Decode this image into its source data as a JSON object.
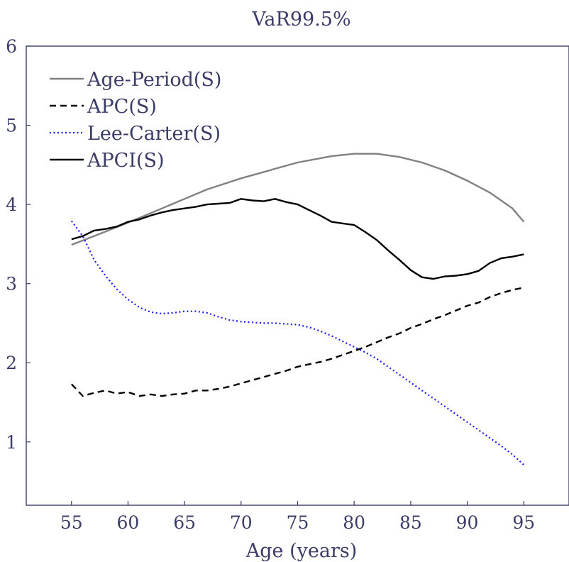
{
  "chart_data": {
    "type": "line",
    "title": "VaR99.5%",
    "xlabel": "Age (years)",
    "ylabel": "",
    "xlim": [
      51,
      99
    ],
    "ylim": [
      0.2,
      6
    ],
    "xticks": [
      55,
      60,
      65,
      70,
      75,
      80,
      85,
      90,
      95
    ],
    "yticks": [
      1,
      2,
      3,
      4,
      5,
      6
    ],
    "grid": false,
    "legend_position": "top-left",
    "series": [
      {
        "name": "Age-Period(S)",
        "color": "#808080",
        "style": "solid",
        "points": [
          [
            55,
            3.49
          ],
          [
            57,
            3.6
          ],
          [
            60,
            3.77
          ],
          [
            63,
            3.95
          ],
          [
            65,
            4.07
          ],
          [
            67,
            4.19
          ],
          [
            70,
            4.33
          ],
          [
            73,
            4.45
          ],
          [
            75,
            4.53
          ],
          [
            78,
            4.61
          ],
          [
            80,
            4.64
          ],
          [
            82,
            4.64
          ],
          [
            84,
            4.6
          ],
          [
            86,
            4.53
          ],
          [
            88,
            4.43
          ],
          [
            90,
            4.3
          ],
          [
            92,
            4.15
          ],
          [
            94,
            3.95
          ],
          [
            95,
            3.78
          ]
        ]
      },
      {
        "name": "APC(S)",
        "color": "#000000",
        "style": "dashed",
        "points": [
          [
            55,
            1.73
          ],
          [
            56,
            1.58
          ],
          [
            57,
            1.62
          ],
          [
            58,
            1.65
          ],
          [
            59,
            1.61
          ],
          [
            60,
            1.63
          ],
          [
            61,
            1.58
          ],
          [
            62,
            1.6
          ],
          [
            63,
            1.58
          ],
          [
            64,
            1.6
          ],
          [
            65,
            1.61
          ],
          [
            66,
            1.65
          ],
          [
            67,
            1.65
          ],
          [
            68,
            1.67
          ],
          [
            69,
            1.7
          ],
          [
            70,
            1.74
          ],
          [
            71,
            1.78
          ],
          [
            72,
            1.82
          ],
          [
            73,
            1.86
          ],
          [
            74,
            1.9
          ],
          [
            75,
            1.95
          ],
          [
            76,
            1.98
          ],
          [
            77,
            2.01
          ],
          [
            78,
            2.05
          ],
          [
            79,
            2.1
          ],
          [
            80,
            2.15
          ],
          [
            81,
            2.2
          ],
          [
            82,
            2.26
          ],
          [
            83,
            2.32
          ],
          [
            84,
            2.37
          ],
          [
            85,
            2.44
          ],
          [
            86,
            2.49
          ],
          [
            87,
            2.55
          ],
          [
            88,
            2.6
          ],
          [
            89,
            2.66
          ],
          [
            90,
            2.72
          ],
          [
            91,
            2.76
          ],
          [
            92,
            2.83
          ],
          [
            93,
            2.88
          ],
          [
            94,
            2.92
          ],
          [
            95,
            2.95
          ]
        ]
      },
      {
        "name": "Lee-Carter(S)",
        "color": "#1a1aff",
        "style": "dotted",
        "points": [
          [
            55,
            3.79
          ],
          [
            56,
            3.6
          ],
          [
            57,
            3.3
          ],
          [
            58,
            3.1
          ],
          [
            59,
            2.93
          ],
          [
            60,
            2.8
          ],
          [
            61,
            2.7
          ],
          [
            62,
            2.64
          ],
          [
            63,
            2.62
          ],
          [
            64,
            2.63
          ],
          [
            65,
            2.65
          ],
          [
            66,
            2.65
          ],
          [
            67,
            2.63
          ],
          [
            68,
            2.58
          ],
          [
            69,
            2.54
          ],
          [
            70,
            2.52
          ],
          [
            71,
            2.51
          ],
          [
            72,
            2.5
          ],
          [
            73,
            2.5
          ],
          [
            74,
            2.49
          ],
          [
            75,
            2.48
          ],
          [
            76,
            2.45
          ],
          [
            77,
            2.4
          ],
          [
            78,
            2.34
          ],
          [
            79,
            2.27
          ],
          [
            80,
            2.2
          ],
          [
            81,
            2.13
          ],
          [
            82,
            2.05
          ],
          [
            83,
            1.95
          ],
          [
            84,
            1.85
          ],
          [
            85,
            1.75
          ],
          [
            86,
            1.65
          ],
          [
            87,
            1.55
          ],
          [
            88,
            1.45
          ],
          [
            89,
            1.35
          ],
          [
            90,
            1.25
          ],
          [
            91,
            1.15
          ],
          [
            92,
            1.05
          ],
          [
            93,
            0.95
          ],
          [
            94,
            0.84
          ],
          [
            95,
            0.71
          ]
        ]
      },
      {
        "name": "APCI(S)",
        "color": "#000000",
        "style": "solid",
        "points": [
          [
            55,
            3.56
          ],
          [
            56,
            3.6
          ],
          [
            57,
            3.67
          ],
          [
            58,
            3.69
          ],
          [
            59,
            3.72
          ],
          [
            60,
            3.78
          ],
          [
            61,
            3.81
          ],
          [
            62,
            3.86
          ],
          [
            63,
            3.9
          ],
          [
            64,
            3.93
          ],
          [
            65,
            3.95
          ],
          [
            66,
            3.97
          ],
          [
            67,
            4.0
          ],
          [
            68,
            4.01
          ],
          [
            69,
            4.02
          ],
          [
            70,
            4.07
          ],
          [
            71,
            4.05
          ],
          [
            72,
            4.04
          ],
          [
            73,
            4.07
          ],
          [
            74,
            4.03
          ],
          [
            75,
            4.0
          ],
          [
            76,
            3.93
          ],
          [
            77,
            3.86
          ],
          [
            78,
            3.78
          ],
          [
            79,
            3.76
          ],
          [
            80,
            3.74
          ],
          [
            81,
            3.65
          ],
          [
            82,
            3.55
          ],
          [
            83,
            3.42
          ],
          [
            84,
            3.3
          ],
          [
            85,
            3.17
          ],
          [
            86,
            3.08
          ],
          [
            87,
            3.06
          ],
          [
            88,
            3.09
          ],
          [
            89,
            3.1
          ],
          [
            90,
            3.12
          ],
          [
            91,
            3.16
          ],
          [
            92,
            3.26
          ],
          [
            93,
            3.32
          ],
          [
            94,
            3.34
          ],
          [
            95,
            3.37
          ]
        ]
      }
    ]
  }
}
